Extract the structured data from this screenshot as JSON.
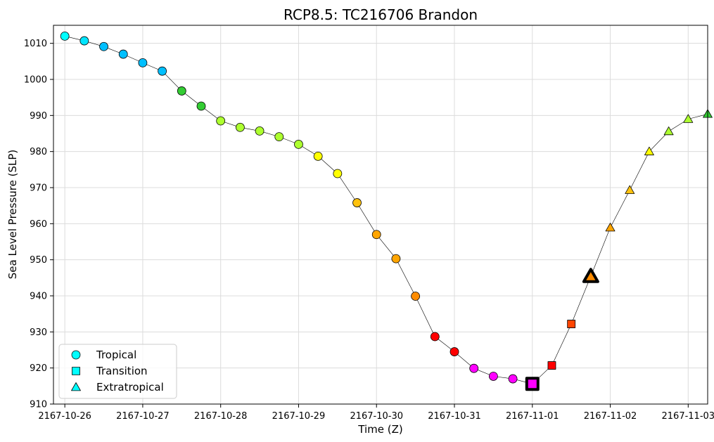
{
  "chart_data": {
    "type": "scatter",
    "title": "RCP8.5: TC216706 Brandon",
    "xlabel": "Time (Z)",
    "ylabel": "Sea Level Pressure (SLP)",
    "xlim": [
      "2167-10-25T20:30",
      "2167-11-03T06:00"
    ],
    "ylim": [
      910,
      1015
    ],
    "grid": true,
    "x_ticks": [
      "2167-10-26",
      "2167-10-27",
      "2167-10-28",
      "2167-10-29",
      "2167-10-30",
      "2167-10-31",
      "2167-11-01",
      "2167-11-02",
      "2167-11-03"
    ],
    "y_ticks": [
      910,
      920,
      930,
      940,
      950,
      960,
      970,
      980,
      990,
      1000,
      1010
    ],
    "legend": {
      "placement": "lower-left",
      "entries": [
        {
          "label": "Tropical",
          "marker": "circle",
          "color": "#00ffff"
        },
        {
          "label": "Transition",
          "marker": "square",
          "color": "#00ffff"
        },
        {
          "label": "Extratropical",
          "marker": "triangle",
          "color": "#00ffff"
        }
      ]
    },
    "line_color": "#000000",
    "points": [
      {
        "t": "2167-10-26T00:00",
        "slp": 1012.0,
        "phase": "Tropical",
        "color": "#00ffff"
      },
      {
        "t": "2167-10-26T06:00",
        "slp": 1010.7,
        "phase": "Tropical",
        "color": "#00e5ff"
      },
      {
        "t": "2167-10-26T12:00",
        "slp": 1009.1,
        "phase": "Tropical",
        "color": "#00bfff"
      },
      {
        "t": "2167-10-26T18:00",
        "slp": 1007.0,
        "phase": "Tropical",
        "color": "#00bfff"
      },
      {
        "t": "2167-10-27T00:00",
        "slp": 1004.6,
        "phase": "Tropical",
        "color": "#00bfff"
      },
      {
        "t": "2167-10-27T06:00",
        "slp": 1002.3,
        "phase": "Tropical",
        "color": "#00bfff"
      },
      {
        "t": "2167-10-27T12:00",
        "slp": 996.8,
        "phase": "Tropical",
        "color": "#33cc33"
      },
      {
        "t": "2167-10-27T18:00",
        "slp": 992.6,
        "phase": "Tropical",
        "color": "#33cc33"
      },
      {
        "t": "2167-10-28T00:00",
        "slp": 988.5,
        "phase": "Tropical",
        "color": "#adff2f"
      },
      {
        "t": "2167-10-28T06:00",
        "slp": 986.7,
        "phase": "Tropical",
        "color": "#adff2f"
      },
      {
        "t": "2167-10-28T12:00",
        "slp": 985.7,
        "phase": "Tropical",
        "color": "#adff2f"
      },
      {
        "t": "2167-10-28T18:00",
        "slp": 984.1,
        "phase": "Tropical",
        "color": "#adff2f"
      },
      {
        "t": "2167-10-29T00:00",
        "slp": 982.0,
        "phase": "Tropical",
        "color": "#adff2f"
      },
      {
        "t": "2167-10-29T06:00",
        "slp": 978.7,
        "phase": "Tropical",
        "color": "#ffff00"
      },
      {
        "t": "2167-10-29T12:00",
        "slp": 973.9,
        "phase": "Tropical",
        "color": "#ffff00"
      },
      {
        "t": "2167-10-29T18:00",
        "slp": 965.8,
        "phase": "Tropical",
        "color": "#ffc20e"
      },
      {
        "t": "2167-10-30T00:00",
        "slp": 957.0,
        "phase": "Tropical",
        "color": "#ffa500"
      },
      {
        "t": "2167-10-30T06:00",
        "slp": 950.3,
        "phase": "Tropical",
        "color": "#ffa500"
      },
      {
        "t": "2167-10-30T12:00",
        "slp": 939.9,
        "phase": "Tropical",
        "color": "#ff8c00"
      },
      {
        "t": "2167-10-30T18:00",
        "slp": 928.7,
        "phase": "Tropical",
        "color": "#ff0000"
      },
      {
        "t": "2167-10-31T00:00",
        "slp": 924.5,
        "phase": "Tropical",
        "color": "#ff0000"
      },
      {
        "t": "2167-10-31T06:00",
        "slp": 919.9,
        "phase": "Tropical",
        "color": "#ff00ff"
      },
      {
        "t": "2167-10-31T12:00",
        "slp": 917.7,
        "phase": "Tropical",
        "color": "#ff00ff"
      },
      {
        "t": "2167-10-31T18:00",
        "slp": 917.0,
        "phase": "Tropical",
        "color": "#ff00ff"
      },
      {
        "t": "2167-11-01T00:00",
        "slp": 915.6,
        "phase": "Transition",
        "color": "#ff00ff",
        "highlight": true
      },
      {
        "t": "2167-11-01T06:00",
        "slp": 920.7,
        "phase": "Transition",
        "color": "#ff0000"
      },
      {
        "t": "2167-11-01T12:00",
        "slp": 932.2,
        "phase": "Transition",
        "color": "#ff4500"
      },
      {
        "t": "2167-11-01T18:00",
        "slp": 945.4,
        "phase": "Extratropical",
        "color": "#ff8c00",
        "highlight": true
      },
      {
        "t": "2167-11-02T00:00",
        "slp": 958.9,
        "phase": "Extratropical",
        "color": "#ffa500"
      },
      {
        "t": "2167-11-02T06:00",
        "slp": 969.3,
        "phase": "Extratropical",
        "color": "#ffc20e"
      },
      {
        "t": "2167-11-02T12:00",
        "slp": 980.0,
        "phase": "Extratropical",
        "color": "#ffff00"
      },
      {
        "t": "2167-11-02T18:00",
        "slp": 985.6,
        "phase": "Extratropical",
        "color": "#adff2f"
      },
      {
        "t": "2167-11-03T00:00",
        "slp": 989.0,
        "phase": "Extratropical",
        "color": "#adff2f"
      },
      {
        "t": "2167-11-03T06:00",
        "slp": 990.4,
        "phase": "Extratropical",
        "color": "#33cc33"
      }
    ]
  }
}
